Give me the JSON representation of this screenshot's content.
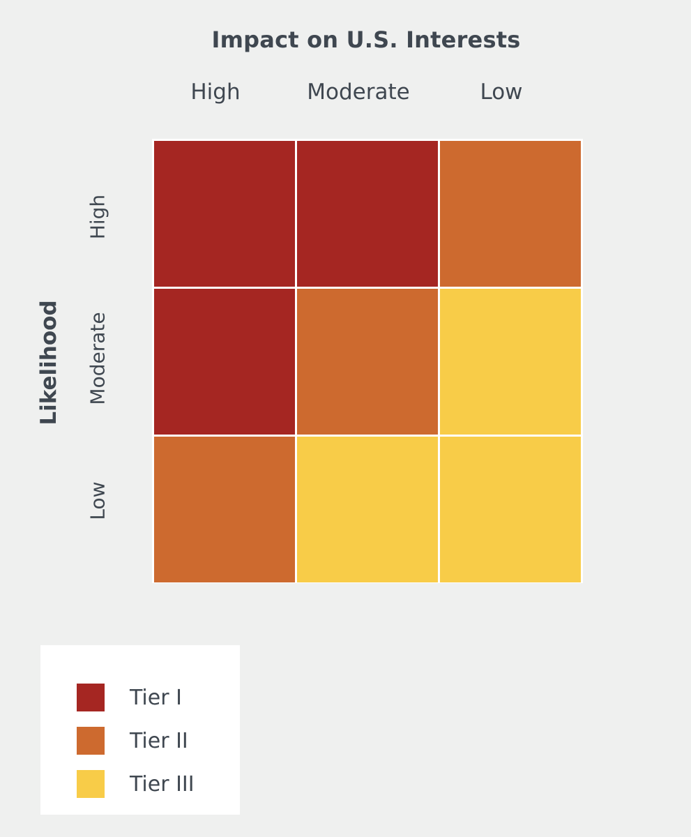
{
  "column_axis": {
    "title": "Impact on U.S. Interests",
    "labels": [
      "High",
      "Moderate",
      "Low"
    ]
  },
  "row_axis": {
    "title": "Likelihood",
    "labels": [
      "High",
      "Moderate",
      "Low"
    ]
  },
  "colors": {
    "tier_i": "#a52622",
    "tier_ii": "#cd6a2f",
    "tier_iii": "#f8cc48"
  },
  "matrix": [
    [
      "Tier I",
      "Tier I",
      "Tier II"
    ],
    [
      "Tier I",
      "Tier II",
      "Tier III"
    ],
    [
      "Tier II",
      "Tier III",
      "Tier III"
    ]
  ],
  "legend": [
    {
      "label": "Tier I",
      "color": "#a52622"
    },
    {
      "label": "Tier II",
      "color": "#cd6a2f"
    },
    {
      "label": "Tier III",
      "color": "#f8cc48"
    }
  ]
}
